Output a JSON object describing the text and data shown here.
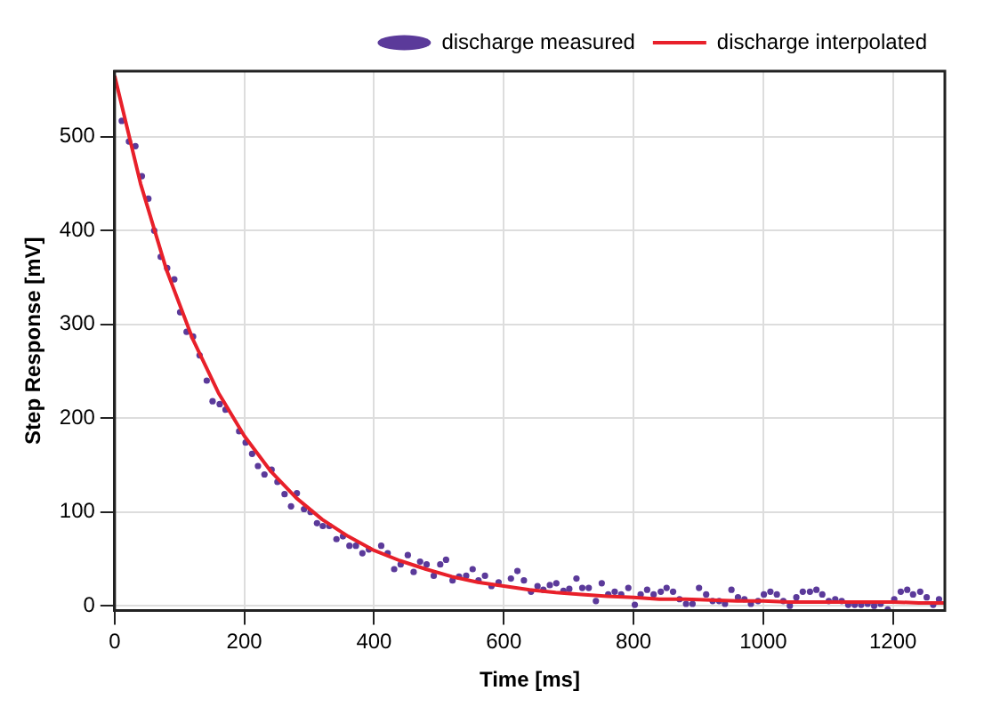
{
  "chart_data": {
    "type": "scatter",
    "xlabel": "Time [ms]",
    "ylabel": "Step Response [mV]",
    "xlim": [
      0,
      1280
    ],
    "ylim": [
      -5,
      570
    ],
    "xticks": [
      0,
      200,
      400,
      600,
      800,
      1000,
      1200
    ],
    "yticks": [
      0,
      100,
      200,
      300,
      400,
      500
    ],
    "grid": true,
    "legend": "top right",
    "series": [
      {
        "name": "discharge measured",
        "type": "scatter",
        "marker": "circle",
        "color": "#5b3a9a",
        "x": [
          11,
          22,
          32,
          42,
          52,
          61,
          71,
          81,
          92,
          101,
          111,
          121,
          131,
          142,
          151,
          162,
          171,
          192,
          202,
          212,
          221,
          231,
          242,
          251,
          262,
          272,
          281,
          292,
          302,
          312,
          321,
          331,
          342,
          352,
          362,
          372,
          382,
          392,
          411,
          421,
          431,
          441,
          452,
          461,
          471,
          481,
          492,
          502,
          511,
          521,
          531,
          542,
          552,
          561,
          571,
          581,
          592,
          611,
          621,
          631,
          642,
          652,
          661,
          671,
          681,
          692,
          701,
          712,
          721,
          731,
          742,
          751,
          761,
          771,
          781,
          792,
          802,
          811,
          821,
          831,
          842,
          851,
          861,
          871,
          881,
          891,
          901,
          912,
          922,
          932,
          941,
          951,
          961,
          971,
          981,
          992,
          1001,
          1011,
          1021,
          1031,
          1041,
          1051,
          1061,
          1072,
          1082,
          1091,
          1101,
          1111,
          1121,
          1131,
          1141,
          1151,
          1161,
          1171,
          1181,
          1192,
          1202,
          1212,
          1222,
          1231,
          1242,
          1252,
          1262,
          1271
        ],
        "values": [
          517,
          495,
          490,
          458,
          434,
          400,
          372,
          360,
          348,
          313,
          292,
          287,
          267,
          240,
          218,
          215,
          209,
          186,
          174,
          162,
          149,
          140,
          145,
          132,
          119,
          106,
          120,
          103,
          100,
          88,
          85,
          85,
          71,
          74,
          64,
          64,
          56,
          60,
          64,
          56,
          39,
          44,
          54,
          36,
          47,
          44,
          32,
          44,
          49,
          27,
          31,
          32,
          39,
          27,
          32,
          21,
          25,
          29,
          37,
          27,
          15,
          21,
          17,
          22,
          24,
          16,
          18,
          29,
          19,
          19,
          5,
          24,
          12,
          15,
          12,
          19,
          1,
          12,
          17,
          12,
          15,
          19,
          15,
          7,
          2,
          2,
          19,
          12,
          5,
          5,
          2,
          17,
          9,
          7,
          2,
          5,
          12,
          15,
          12,
          5,
          0,
          9,
          15,
          15,
          17,
          12,
          5,
          7,
          5,
          1,
          1,
          1,
          2,
          0,
          2,
          -4,
          7,
          15,
          17,
          12,
          15,
          9,
          1,
          7
        ]
      },
      {
        "name": "discharge interpolated",
        "type": "line",
        "marker": "none",
        "line_style": "solid",
        "color": "#e8202a",
        "x": [
          0,
          40,
          80,
          120,
          160,
          200,
          240,
          280,
          320,
          360,
          400,
          440,
          480,
          520,
          560,
          600,
          640,
          680,
          720,
          760,
          800,
          840,
          880,
          920,
          960,
          1000,
          1040,
          1080,
          1120,
          1160,
          1200,
          1240,
          1280
        ],
        "values": [
          565,
          450,
          358,
          285,
          227,
          181,
          144,
          115,
          92,
          74,
          59,
          48,
          39,
          31,
          25,
          21,
          17,
          14,
          12,
          10,
          9,
          7,
          7,
          6,
          5,
          5,
          4,
          4,
          4,
          4,
          4,
          3,
          3
        ]
      }
    ]
  }
}
